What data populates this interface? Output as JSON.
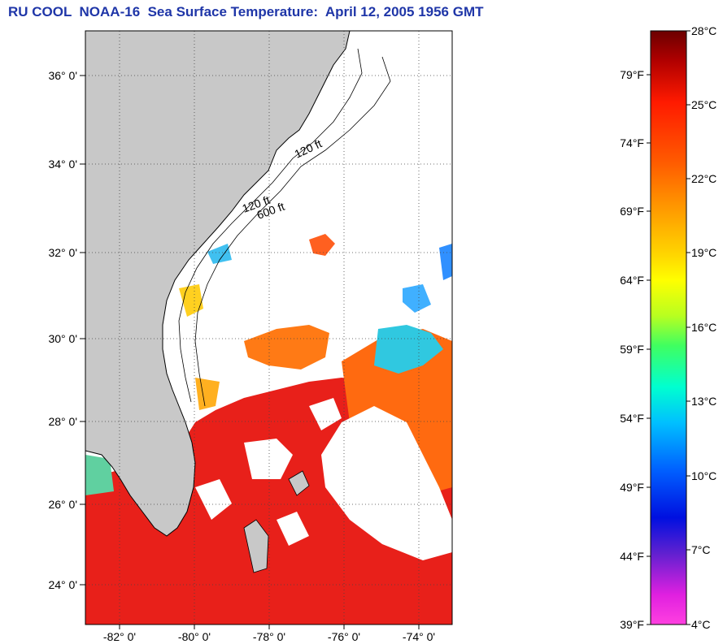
{
  "title": "RU COOL  NOAA-16  Sea Surface Temperature:  April 12, 2005 1956 GMT",
  "map": {
    "lat_labels": [
      "36° 0'",
      "34° 0'",
      "32° 0'",
      "30° 0'",
      "28° 0'",
      "26° 0'",
      "24° 0'"
    ],
    "lon_labels": [
      "-82° 0'",
      "-80° 0'",
      "-78° 0'",
      "-76° 0'",
      "-74° 0'"
    ],
    "depth_labels": [
      "120 ft",
      "600 ft",
      "120 ft"
    ],
    "colors": {
      "land": "#c8c8c8",
      "cloud": "#ffffff",
      "grid": "#555555"
    }
  },
  "colorbar": {
    "fahrenheit_labels": [
      "79°F",
      "74°F",
      "69°F",
      "64°F",
      "59°F",
      "54°F",
      "49°F",
      "44°F",
      "39°F"
    ],
    "celsius_labels": [
      "28°C",
      "25°C",
      "22°C",
      "19°C",
      "16°C",
      "13°C",
      "10°C",
      "7°C",
      "4°C"
    ],
    "range_celsius": [
      4,
      28
    ]
  }
}
